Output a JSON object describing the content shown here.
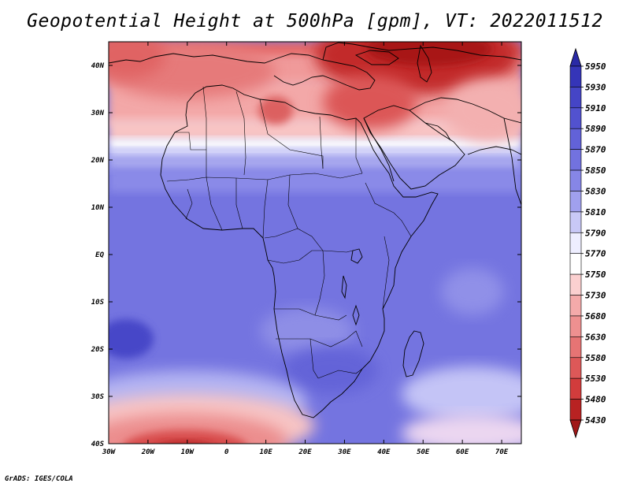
{
  "title": "Geopotential Height at 500hPa [gpm], VT: 2022011512",
  "credit": "GrADS: IGES/COLA",
  "map": {
    "lat_labels": [
      "40N",
      "30N",
      "20N",
      "10N",
      "EQ",
      "10S",
      "20S",
      "30S",
      "40S"
    ],
    "lon_labels": [
      "30W",
      "20W",
      "10W",
      "0",
      "10E",
      "20E",
      "30E",
      "40E",
      "50E",
      "60E",
      "70E"
    ],
    "lat_range": [
      -40,
      45
    ],
    "lon_range": [
      -30,
      75
    ]
  },
  "colorbar": {
    "levels": [
      "5950",
      "5930",
      "5910",
      "5890",
      "5870",
      "5850",
      "5830",
      "5810",
      "5790",
      "5770",
      "5750",
      "5730",
      "5680",
      "5630",
      "5580",
      "5530",
      "5480",
      "5430"
    ],
    "colors": [
      "#2a2aa6",
      "#3535b8",
      "#4545c6",
      "#5252cf",
      "#6262d8",
      "#7272df",
      "#8686e6",
      "#a0a0ee",
      "#c8c8f6",
      "#eeeeff",
      "#ffffff",
      "#fbd0d0",
      "#f4aaaa",
      "#ee9090",
      "#e67474",
      "#dd5858",
      "#d23c3c",
      "#b82222",
      "#a01818"
    ]
  }
}
